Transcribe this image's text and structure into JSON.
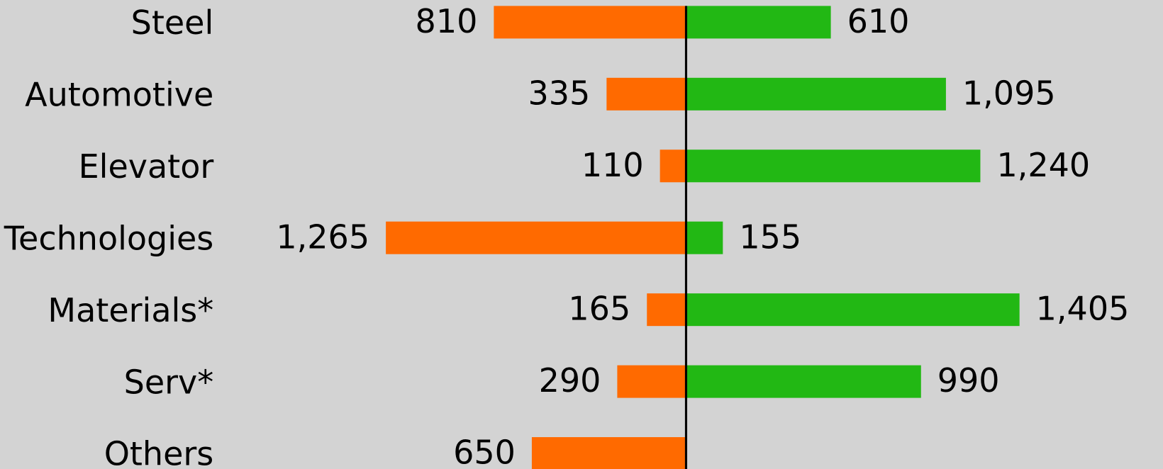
{
  "chart_data": {
    "type": "diverging_bar",
    "categories": [
      "Steel",
      "Automotive",
      "Elevator",
      "Technologies",
      "Materials*",
      "Serv*",
      "Others"
    ],
    "series": [
      {
        "color": "#ff6a00",
        "side": "left",
        "values": [
          810,
          335,
          110,
          1265,
          165,
          290,
          650
        ],
        "value_labels": [
          "810",
          "335",
          "110",
          "1,265",
          "165",
          "290",
          "650"
        ]
      },
      {
        "color": "#22b814",
        "side": "right",
        "values": [
          610,
          1095,
          1240,
          155,
          1405,
          990,
          null
        ],
        "value_labels": [
          "610",
          "1,095",
          "1,240",
          "155",
          "1,405",
          "990",
          null
        ]
      }
    ]
  }
}
